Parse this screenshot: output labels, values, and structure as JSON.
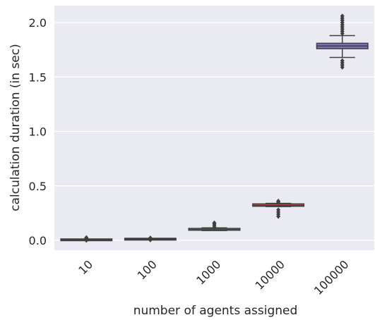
{
  "chart_data": {
    "type": "box",
    "xlabel": "number of agents assigned",
    "ylabel": "calculation duration (in sec)",
    "categories": [
      "10",
      "100",
      "1000",
      "10000",
      "100000"
    ],
    "yticks": [
      0.0,
      0.5,
      1.0,
      1.5,
      2.0
    ],
    "ytick_labels": [
      "0.0",
      "0.5",
      "1.0",
      "1.5",
      "2.0"
    ],
    "ylim": [
      -0.1,
      2.15
    ],
    "grid": true,
    "background": "#eaeaf2",
    "boxes": [
      {
        "category": "10",
        "whisker_low": 0.003,
        "q1": 0.004,
        "median": 0.005,
        "q3": 0.006,
        "whisker_high": 0.007,
        "outliers": [
          0.0,
          0.01,
          0.02,
          0.025
        ],
        "color": "#4c72b0"
      },
      {
        "category": "100",
        "whisker_low": 0.009,
        "q1": 0.01,
        "median": 0.011,
        "q3": 0.012,
        "whisker_high": 0.013,
        "outliers": [
          0.004,
          0.018,
          0.022
        ],
        "color": "#dd8452"
      },
      {
        "category": "1000",
        "whisker_low": 0.09,
        "q1": 0.093,
        "median": 0.098,
        "q3": 0.11,
        "whisker_high": 0.115,
        "outliers": [
          0.12,
          0.135,
          0.15,
          0.16
        ],
        "color": "#55a868"
      },
      {
        "category": "10000",
        "whisker_low": 0.31,
        "q1": 0.313,
        "median": 0.32,
        "q3": 0.335,
        "whisker_high": 0.34,
        "outliers": [
          0.22,
          0.24,
          0.26,
          0.28,
          0.35,
          0.36
        ],
        "color": "#c44e52"
      },
      {
        "category": "100000",
        "whisker_low": 1.68,
        "q1": 1.76,
        "median": 1.785,
        "q3": 1.81,
        "whisker_high": 1.88,
        "outliers": [
          1.59,
          1.61,
          1.63,
          1.65,
          1.9,
          1.92,
          1.94,
          1.96,
          1.98,
          2.0,
          2.02,
          2.04,
          2.06
        ],
        "color": "#8172b3"
      }
    ]
  }
}
